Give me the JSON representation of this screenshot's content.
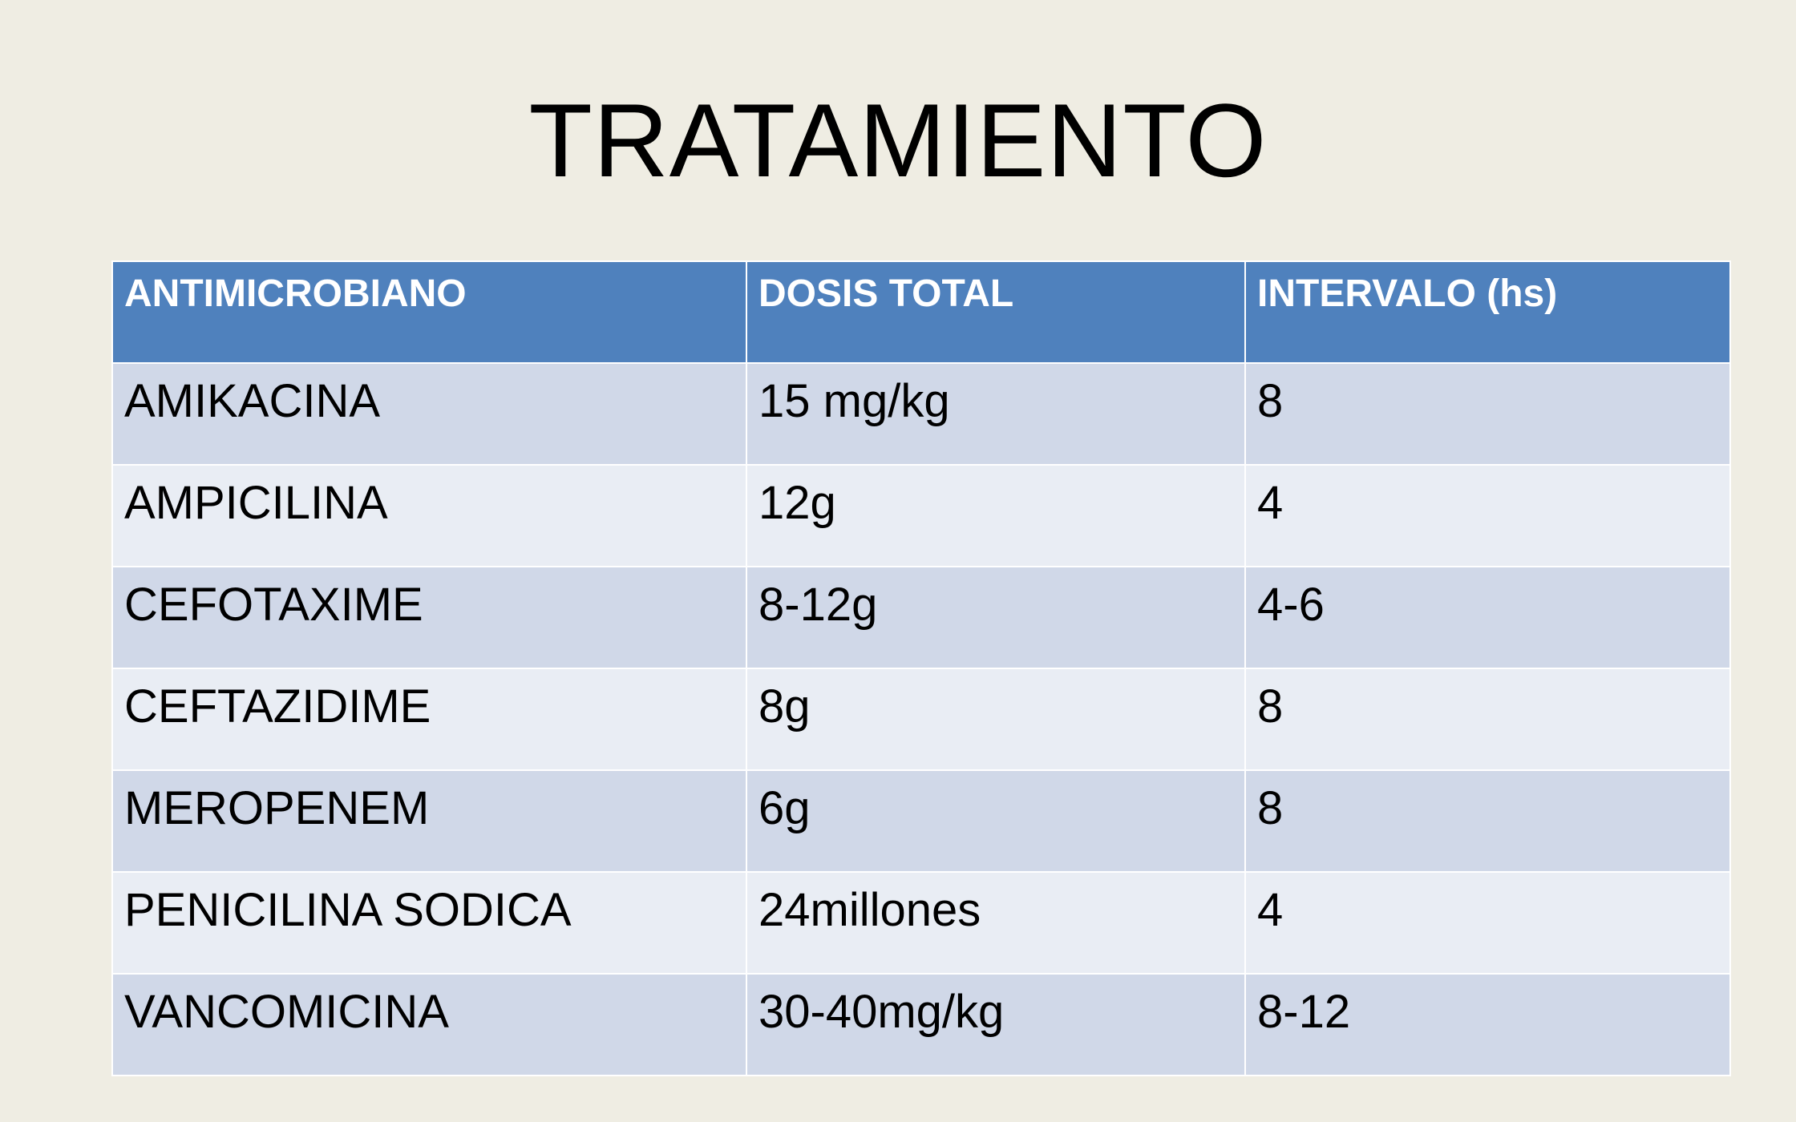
{
  "slide": {
    "title": "TRATAMIENTO"
  },
  "table": {
    "headers": [
      "ANTIMICROBIANO",
      "DOSIS TOTAL",
      "INTERVALO (hs)"
    ],
    "rows": [
      [
        "AMIKACINA",
        "15 mg/kg",
        "8"
      ],
      [
        "AMPICILINA",
        "12g",
        "4"
      ],
      [
        "CEFOTAXIME",
        "8-12g",
        "4-6"
      ],
      [
        "CEFTAZIDIME",
        "8g",
        "8"
      ],
      [
        "MEROPENEM",
        "6g",
        "8"
      ],
      [
        "PENICILINA SODICA",
        "24millones",
        "4"
      ],
      [
        "VANCOMICINA",
        "30-40mg/kg",
        "8-12"
      ]
    ]
  },
  "colors": {
    "background": "#efede3",
    "header": "#4f81bd",
    "row_band_dark": "#d0d8e8",
    "row_band_light": "#e9edf4"
  }
}
